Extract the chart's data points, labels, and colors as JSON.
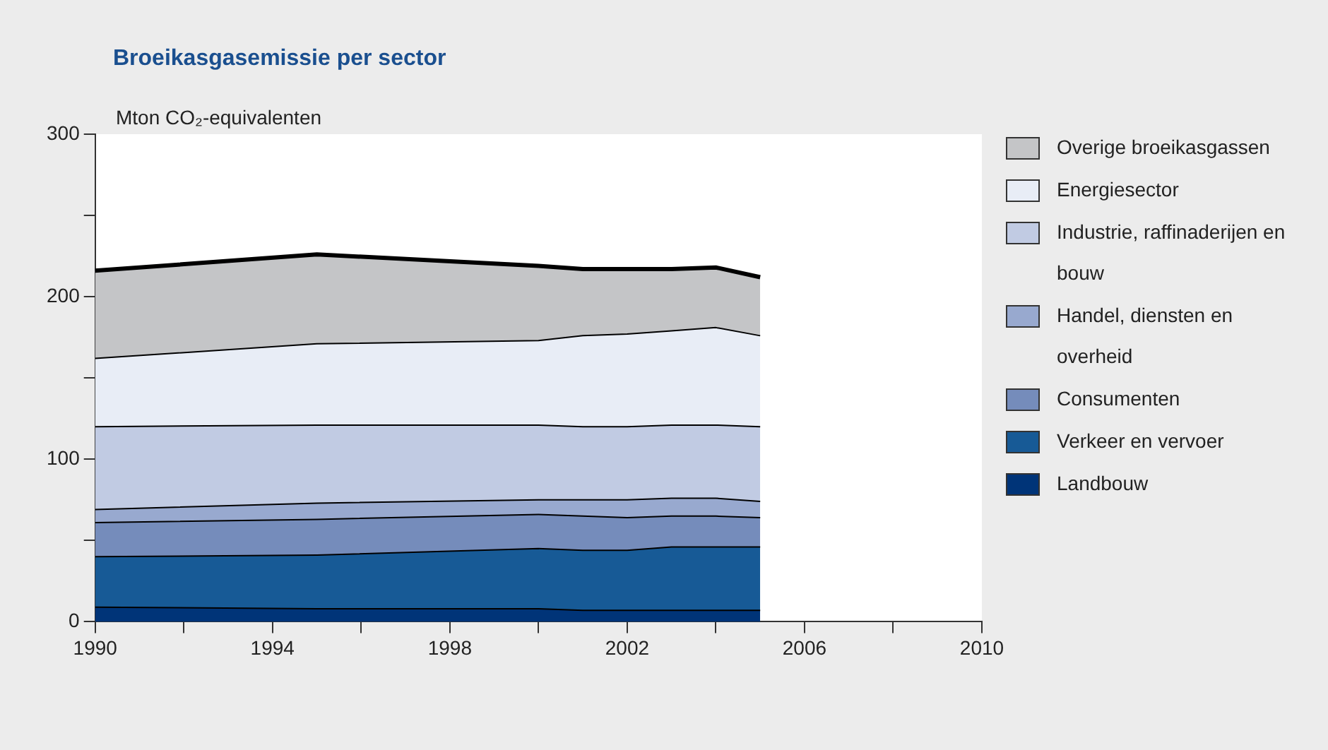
{
  "chart_data": {
    "type": "area",
    "title": "Broeikasgasemissie per sector",
    "ylabel": "Mton CO₂-equivalenten",
    "x": [
      1990,
      1995,
      2000,
      2001,
      2002,
      2003,
      2004,
      2005
    ],
    "stacked": true,
    "legend": "right",
    "grid": false,
    "xlim": [
      1990,
      2010
    ],
    "xticks": [
      1990,
      {
        "value": 1992,
        "label": null
      },
      1994,
      {
        "value": 1996,
        "label": null
      },
      1998,
      {
        "value": 2000,
        "label": null
      },
      2002,
      {
        "value": 2004,
        "label": null
      },
      2006,
      {
        "value": 2008,
        "label": null
      },
      2010
    ],
    "ylim": [
      0,
      300
    ],
    "yticks": [
      0,
      {
        "value": 50,
        "label": null
      },
      100,
      {
        "value": 150,
        "label": null
      },
      200,
      {
        "value": 250,
        "label": null
      },
      300
    ],
    "series": [
      {
        "name": "Landbouw",
        "color": "#003478",
        "values": [
          9,
          8,
          8,
          7,
          7,
          7,
          7,
          7
        ]
      },
      {
        "name": "Verkeer en vervoer",
        "color": "#175a96",
        "values": [
          31,
          33,
          37,
          37,
          37,
          39,
          39,
          39
        ]
      },
      {
        "name": "Consumenten",
        "color": "#758cbb",
        "values": [
          21,
          22,
          21,
          21,
          20,
          19,
          19,
          18
        ]
      },
      {
        "name": "Handel, diensten en overheid",
        "color": "#98a9cf",
        "values": [
          8,
          10,
          9,
          10,
          11,
          11,
          11,
          10
        ]
      },
      {
        "name": "Industrie, raffinaderijen en bouw",
        "color": "#c1cbe3",
        "values": [
          51,
          48,
          46,
          45,
          45,
          45,
          45,
          46
        ]
      },
      {
        "name": "Energiesector",
        "color": "#e8edf6",
        "values": [
          42,
          50,
          52,
          56,
          57,
          58,
          60,
          56
        ]
      },
      {
        "name": "Overige broeikasgassen",
        "color": "#c4c5c7",
        "values": [
          54,
          55,
          46,
          41,
          40,
          38,
          37,
          36
        ]
      }
    ]
  }
}
